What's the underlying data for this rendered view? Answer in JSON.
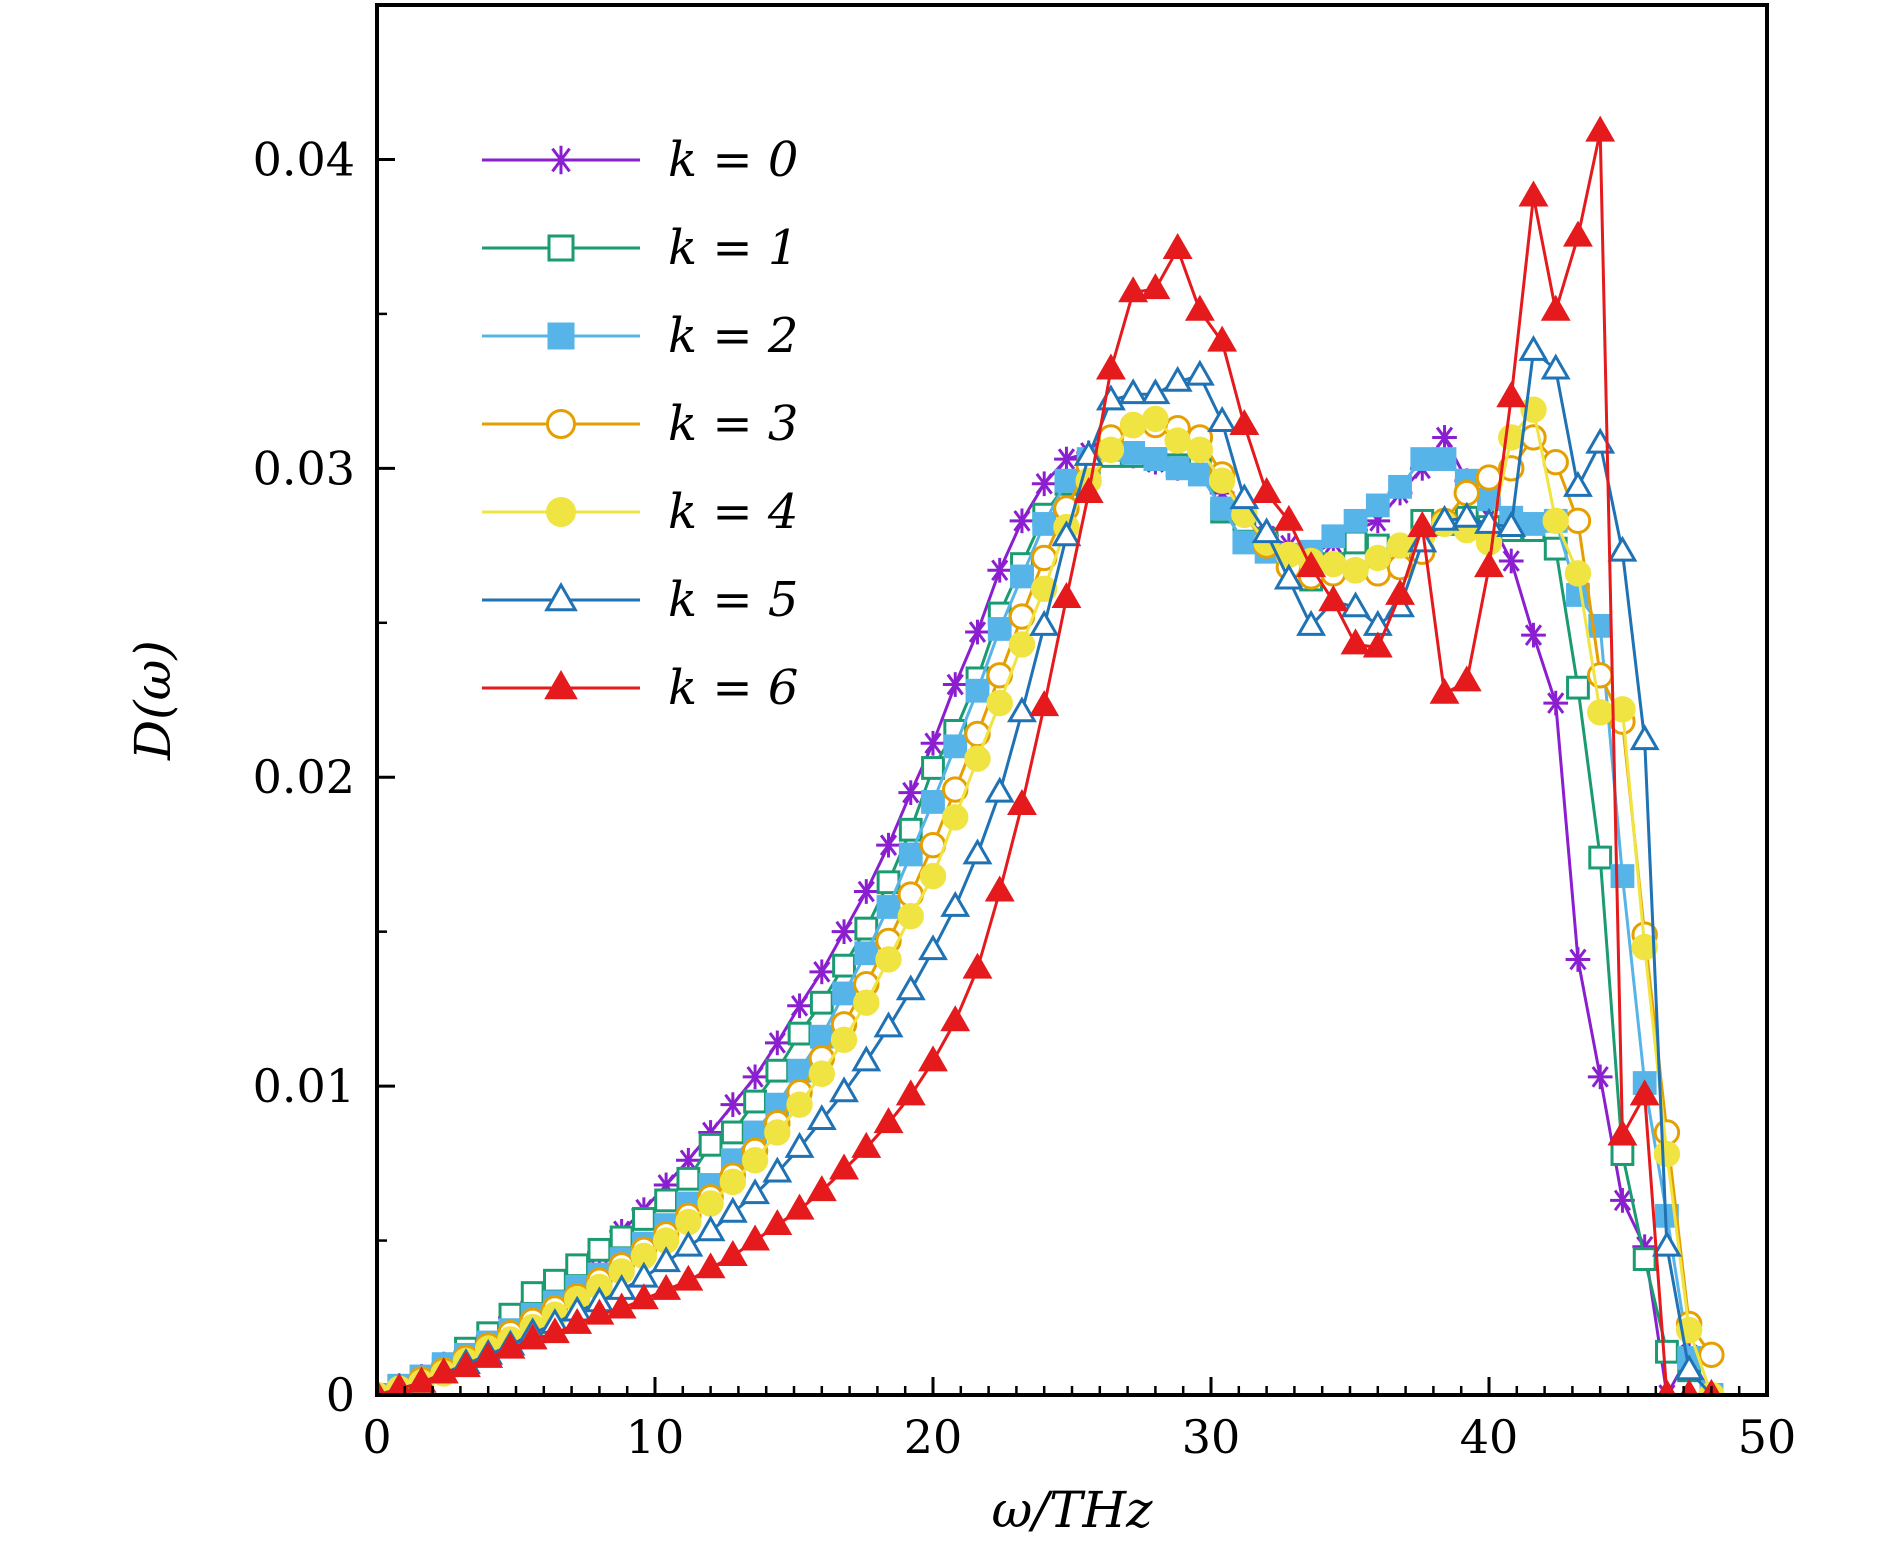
{
  "chart_data": {
    "type": "line",
    "xlabel": "ω/THz",
    "ylabel": "D(ω)",
    "xlim": [
      0,
      50
    ],
    "ylim": [
      0,
      0.045
    ],
    "xticks": [
      0,
      10,
      20,
      30,
      40,
      50
    ],
    "xtick_labels": [
      "0",
      "10",
      "20",
      "30",
      "40",
      "50"
    ],
    "yticks": [
      0,
      0.01,
      0.02,
      0.03,
      0.04
    ],
    "ytick_labels": [
      "0",
      "0.01",
      "0.02",
      "0.03",
      "0.04"
    ],
    "grid": false,
    "legend_position": "top-left",
    "series": [
      {
        "name": "k = 0",
        "color": "#8b1fd0",
        "marker": "asterisk",
        "x": [
          0,
          0.8,
          1.6,
          2.4,
          3.2,
          4.0,
          4.8,
          5.6,
          6.4,
          7.2,
          8.0,
          8.8,
          9.6,
          10.4,
          11.2,
          12.0,
          12.8,
          13.6,
          14.4,
          15.2,
          16.0,
          16.8,
          17.6,
          18.4,
          19.2,
          20.0,
          20.8,
          21.6,
          22.4,
          23.2,
          24.0,
          24.8,
          25.6,
          26.4,
          27.2,
          28.0,
          28.8,
          29.6,
          30.4,
          31.2,
          32.0,
          32.8,
          33.6,
          34.4,
          35.2,
          36.0,
          36.8,
          37.6,
          38.4,
          39.2,
          40.0,
          40.8,
          41.6,
          42.4,
          43.2,
          44.0,
          44.8,
          45.6,
          46.4,
          47.2,
          48.0
        ],
        "y": [
          0,
          0.0003,
          0.0006,
          0.001,
          0.0014,
          0.0019,
          0.0025,
          0.003,
          0.0035,
          0.004,
          0.0046,
          0.0053,
          0.006,
          0.0068,
          0.0076,
          0.0085,
          0.0094,
          0.0103,
          0.0114,
          0.0126,
          0.0137,
          0.015,
          0.0163,
          0.0178,
          0.0195,
          0.0211,
          0.023,
          0.0247,
          0.0267,
          0.0283,
          0.0295,
          0.0303,
          0.0305,
          0.0305,
          0.0304,
          0.0302,
          0.03,
          0.0299,
          0.0292,
          0.0284,
          0.0278,
          0.0275,
          0.0272,
          0.0276,
          0.028,
          0.0283,
          0.0292,
          0.03,
          0.031,
          0.0296,
          0.0284,
          0.027,
          0.0246,
          0.0224,
          0.0141,
          0.0103,
          0.0063,
          0.0048,
          0,
          0.0013,
          0
        ]
      },
      {
        "name": "k = 1",
        "color": "#1b9b72",
        "marker": "square-open",
        "x": [
          0,
          0.8,
          1.6,
          2.4,
          3.2,
          4.0,
          4.8,
          5.6,
          6.4,
          7.2,
          8.0,
          8.8,
          9.6,
          10.4,
          11.2,
          12.0,
          12.8,
          13.6,
          14.4,
          15.2,
          16.0,
          16.8,
          17.6,
          18.4,
          19.2,
          20.0,
          20.8,
          21.6,
          22.4,
          23.2,
          24.0,
          24.8,
          25.6,
          26.4,
          27.2,
          28.0,
          28.8,
          29.6,
          30.4,
          31.2,
          32.0,
          32.8,
          33.6,
          34.4,
          35.2,
          36.0,
          36.8,
          37.6,
          38.4,
          39.2,
          40.0,
          40.8,
          41.6,
          42.4,
          43.2,
          44.0,
          44.8,
          45.6,
          46.4,
          47.2,
          48.0
        ],
        "y": [
          0,
          0,
          0.0004,
          0.0009,
          0.0015,
          0.002,
          0.0026,
          0.0033,
          0.0037,
          0.0042,
          0.0047,
          0.0051,
          0.0057,
          0.0063,
          0.007,
          0.0081,
          0.0085,
          0.0095,
          0.0105,
          0.0117,
          0.0127,
          0.0139,
          0.0151,
          0.0166,
          0.0183,
          0.0203,
          0.0215,
          0.0232,
          0.0253,
          0.0269,
          0.0285,
          0.0295,
          0.03,
          0.0304,
          0.0304,
          0.0303,
          0.0301,
          0.0301,
          0.0286,
          0.0283,
          0.0277,
          0.0272,
          0.0264,
          0.0269,
          0.0276,
          0.0275,
          0.0274,
          0.0283,
          0.0282,
          0.0284,
          0.0281,
          0.028,
          0.028,
          0.0274,
          0.0229,
          0.0174,
          0.0078,
          0.0044,
          0.0014,
          0.0008,
          0
        ]
      },
      {
        "name": "k = 2",
        "color": "#56b4e9",
        "marker": "square-filled",
        "x": [
          0,
          0.8,
          1.6,
          2.4,
          3.2,
          4.0,
          4.8,
          5.6,
          6.4,
          7.2,
          8.0,
          8.8,
          9.6,
          10.4,
          11.2,
          12.0,
          12.8,
          13.6,
          14.4,
          15.2,
          16.0,
          16.8,
          17.6,
          18.4,
          19.2,
          20.0,
          20.8,
          21.6,
          22.4,
          23.2,
          24.0,
          24.8,
          25.6,
          26.4,
          27.2,
          28.0,
          28.8,
          29.6,
          30.4,
          31.2,
          32.0,
          32.8,
          33.6,
          34.4,
          35.2,
          36.0,
          36.8,
          37.6,
          38.4,
          39.2,
          40.0,
          40.8,
          41.6,
          42.4,
          43.2,
          44.0,
          44.8,
          45.6,
          46.4,
          47.2,
          48.0
        ],
        "y": [
          0,
          0.0003,
          0.0006,
          0.001,
          0.0013,
          0.0017,
          0.0021,
          0.0026,
          0.003,
          0.0035,
          0.0039,
          0.0044,
          0.0049,
          0.0055,
          0.0062,
          0.0068,
          0.0076,
          0.0085,
          0.0094,
          0.0105,
          0.0116,
          0.013,
          0.0143,
          0.0158,
          0.0175,
          0.0192,
          0.021,
          0.0228,
          0.0248,
          0.0265,
          0.0282,
          0.0296,
          0.0303,
          0.0306,
          0.0305,
          0.0303,
          0.03,
          0.0298,
          0.0287,
          0.0276,
          0.0273,
          0.0272,
          0.0273,
          0.0278,
          0.0283,
          0.0288,
          0.0294,
          0.0303,
          0.0303,
          0.0296,
          0.029,
          0.0284,
          0.0282,
          0.0283,
          0.0259,
          0.0249,
          0.0168,
          0.0101,
          0.0058,
          0.0012,
          0
        ]
      },
      {
        "name": "k = 3",
        "color": "#e69f00",
        "marker": "circle-open",
        "x": [
          0,
          0.8,
          1.6,
          2.4,
          3.2,
          4.0,
          4.8,
          5.6,
          6.4,
          7.2,
          8.0,
          8.8,
          9.6,
          10.4,
          11.2,
          12.0,
          12.8,
          13.6,
          14.4,
          15.2,
          16.0,
          16.8,
          17.6,
          18.4,
          19.2,
          20.0,
          20.8,
          21.6,
          22.4,
          23.2,
          24.0,
          24.8,
          25.6,
          26.4,
          27.2,
          28.0,
          28.8,
          29.6,
          30.4,
          31.2,
          32.0,
          32.8,
          33.6,
          34.4,
          35.2,
          36.0,
          36.8,
          37.6,
          38.4,
          39.2,
          40.0,
          40.8,
          41.6,
          42.4,
          43.2,
          44.0,
          44.8,
          45.6,
          46.4,
          47.2,
          48.0
        ],
        "y": [
          0,
          0.0002,
          0.0005,
          0.0008,
          0.0012,
          0.0016,
          0.002,
          0.0024,
          0.0028,
          0.0032,
          0.0037,
          0.0042,
          0.0047,
          0.0052,
          0.0058,
          0.0064,
          0.0071,
          0.0079,
          0.0088,
          0.0098,
          0.0109,
          0.012,
          0.0133,
          0.0147,
          0.0162,
          0.0178,
          0.0196,
          0.0214,
          0.0233,
          0.0252,
          0.0271,
          0.0287,
          0.0301,
          0.031,
          0.0314,
          0.0314,
          0.0313,
          0.031,
          0.0298,
          0.0285,
          0.0275,
          0.0268,
          0.0265,
          0.0266,
          0.0267,
          0.0266,
          0.0268,
          0.0273,
          0.0283,
          0.0292,
          0.0297,
          0.03,
          0.031,
          0.0302,
          0.0283,
          0.0233,
          0.0218,
          0.0149,
          0.0085,
          0.0023,
          0.0013
        ]
      },
      {
        "name": "k = 4",
        "color": "#f0e442",
        "marker": "circle-filled",
        "x": [
          0,
          0.8,
          1.6,
          2.4,
          3.2,
          4.0,
          4.8,
          5.6,
          6.4,
          7.2,
          8.0,
          8.8,
          9.6,
          10.4,
          11.2,
          12.0,
          12.8,
          13.6,
          14.4,
          15.2,
          16.0,
          16.8,
          17.6,
          18.4,
          19.2,
          20.0,
          20.8,
          21.6,
          22.4,
          23.2,
          24.0,
          24.8,
          25.6,
          26.4,
          27.2,
          28.0,
          28.8,
          29.6,
          30.4,
          31.2,
          32.0,
          32.8,
          33.6,
          34.4,
          35.2,
          36.0,
          36.8,
          37.6,
          38.4,
          39.2,
          40.0,
          40.8,
          41.6,
          42.4,
          43.2,
          44.0,
          44.8,
          45.6,
          46.4,
          47.2,
          48.0
        ],
        "y": [
          0,
          0.0002,
          0.0004,
          0.0007,
          0.0011,
          0.0015,
          0.0018,
          0.0022,
          0.0026,
          0.0031,
          0.0035,
          0.004,
          0.0045,
          0.005,
          0.0056,
          0.0062,
          0.0069,
          0.0076,
          0.0085,
          0.0094,
          0.0104,
          0.0115,
          0.0127,
          0.0141,
          0.0155,
          0.0168,
          0.0187,
          0.0206,
          0.0224,
          0.0243,
          0.0261,
          0.0281,
          0.0296,
          0.0306,
          0.0314,
          0.0316,
          0.0309,
          0.0306,
          0.0296,
          0.0285,
          0.0276,
          0.0272,
          0.027,
          0.0269,
          0.0267,
          0.0271,
          0.0275,
          0.0278,
          0.0282,
          0.028,
          0.0276,
          0.031,
          0.0319,
          0.0283,
          0.0266,
          0.0221,
          0.0222,
          0.0145,
          0.0078,
          0.0021,
          0
        ]
      },
      {
        "name": "k = 5",
        "color": "#1f72b4",
        "marker": "triangle-open",
        "x": [
          0,
          0.8,
          1.6,
          2.4,
          3.2,
          4.0,
          4.8,
          5.6,
          6.4,
          7.2,
          8.0,
          8.8,
          9.6,
          10.4,
          11.2,
          12.0,
          12.8,
          13.6,
          14.4,
          15.2,
          16.0,
          16.8,
          17.6,
          18.4,
          19.2,
          20.0,
          20.8,
          21.6,
          22.4,
          23.2,
          24.0,
          24.8,
          25.6,
          26.4,
          27.2,
          28.0,
          28.8,
          29.6,
          30.4,
          31.2,
          32.0,
          32.8,
          33.6,
          34.4,
          35.2,
          36.0,
          36.8,
          37.6,
          38.4,
          39.2,
          40.0,
          40.8,
          41.6,
          42.4,
          43.2,
          44.0,
          44.8,
          45.6,
          46.4,
          47.2,
          48.0
        ],
        "y": [
          0,
          0.0002,
          0.0004,
          0.0007,
          0.001,
          0.0013,
          0.0016,
          0.002,
          0.0023,
          0.0027,
          0.003,
          0.0034,
          0.0038,
          0.0043,
          0.0048,
          0.0053,
          0.0059,
          0.0065,
          0.0072,
          0.008,
          0.0089,
          0.0098,
          0.0108,
          0.0119,
          0.0131,
          0.0144,
          0.0158,
          0.0175,
          0.0195,
          0.0221,
          0.0249,
          0.0278,
          0.0304,
          0.0322,
          0.0324,
          0.0324,
          0.0328,
          0.033,
          0.0315,
          0.029,
          0.0279,
          0.0264,
          0.0249,
          0.0257,
          0.0255,
          0.0249,
          0.0255,
          0.0276,
          0.0283,
          0.0284,
          0.0282,
          0.0281,
          0.0338,
          0.0332,
          0.0294,
          0.0308,
          0.0273,
          0.0212,
          0.0048,
          0.0008,
          0
        ]
      },
      {
        "name": "k = 6",
        "color": "#e41a1c",
        "marker": "triangle-filled",
        "x": [
          0,
          0.8,
          1.6,
          2.4,
          3.2,
          4.0,
          4.8,
          5.6,
          6.4,
          7.2,
          8.0,
          8.8,
          9.6,
          10.4,
          11.2,
          12.0,
          12.8,
          13.6,
          14.4,
          15.2,
          16.0,
          16.8,
          17.6,
          18.4,
          19.2,
          20.0,
          20.8,
          21.6,
          22.4,
          23.2,
          24.0,
          24.8,
          25.6,
          26.4,
          27.2,
          28.0,
          28.8,
          29.6,
          30.4,
          31.2,
          32.0,
          32.8,
          33.6,
          34.4,
          35.2,
          36.0,
          36.8,
          37.6,
          38.4,
          39.2,
          40.0,
          40.8,
          41.6,
          42.4,
          43.2,
          44.0,
          44.8,
          45.6,
          46.4,
          47.2,
          48.0
        ],
        "y": [
          0,
          0.0002,
          0.0004,
          0.0007,
          0.0009,
          0.0012,
          0.0015,
          0.0018,
          0.002,
          0.0023,
          0.0026,
          0.0028,
          0.0031,
          0.0034,
          0.0037,
          0.0041,
          0.0045,
          0.005,
          0.0055,
          0.006,
          0.0066,
          0.0073,
          0.008,
          0.0088,
          0.0097,
          0.0108,
          0.0121,
          0.0138,
          0.0163,
          0.0191,
          0.0223,
          0.0258,
          0.0292,
          0.0332,
          0.0357,
          0.0358,
          0.0371,
          0.0351,
          0.0341,
          0.0314,
          0.0292,
          0.0283,
          0.0268,
          0.0257,
          0.0243,
          0.0242,
          0.0259,
          0.0281,
          0.0227,
          0.0231,
          0.0268,
          0.0323,
          0.0388,
          0.0351,
          0.0375,
          0.0409,
          0.0084,
          0.0097,
          0,
          0,
          0
        ]
      }
    ]
  }
}
